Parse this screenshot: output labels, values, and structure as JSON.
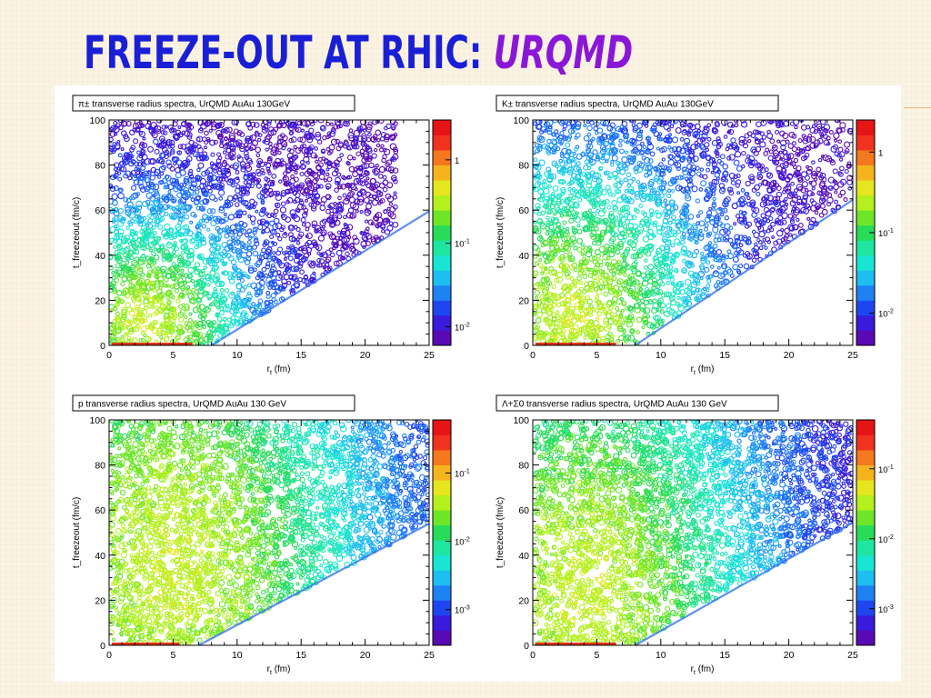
{
  "slide": {
    "title_part1": "FREEZE-OUT AT RHIC: ",
    "title_part2": "URQMD"
  },
  "chart_data": [
    {
      "type": "heatmap",
      "title": "π± transverse radius spectra, UrQMD AuAu 130GeV",
      "xlabel": "r_t (fm)",
      "ylabel": "t_freezeout (fm/c)",
      "xlim": [
        0,
        25
      ],
      "ylim": [
        0,
        100
      ],
      "x_ticks": [
        0,
        5,
        10,
        15,
        20,
        25
      ],
      "y_ticks": [
        0,
        20,
        40,
        60,
        80,
        100
      ],
      "colorbar_scale": "log",
      "colorbar_labels": [
        {
          "text": "1",
          "value": 1
        },
        {
          "text": "10-1",
          "value": 0.1
        },
        {
          "text": "10-2",
          "value": 0.01
        }
      ],
      "colorbar_range": [
        0.006,
        3
      ],
      "description": "contour density in the (r_t, t_freezeout) plane; bounded below by the line t ≈ 3.5·(r_t − 8)",
      "density_model": {
        "peak_rt": 3,
        "peak_t": 10,
        "rt_width": 4.5,
        "t_width": 28,
        "lower_bound_rt_offset": 8,
        "lower_bound_slope": 3.5,
        "rt_max": 22.5
      },
      "grid": false
    },
    {
      "type": "heatmap",
      "title": "K± transverse radius spectra, UrQMD AuAu 130GeV",
      "xlabel": "r_t (fm)",
      "ylabel": "t_freezeout (fm/c)",
      "xlim": [
        0,
        25
      ],
      "ylim": [
        0,
        100
      ],
      "x_ticks": [
        0,
        5,
        10,
        15,
        20,
        25
      ],
      "y_ticks": [
        0,
        20,
        40,
        60,
        80,
        100
      ],
      "colorbar_scale": "log",
      "colorbar_labels": [
        {
          "text": "1",
          "value": 1
        },
        {
          "text": "10-1",
          "value": 0.1
        },
        {
          "text": "10-2",
          "value": 0.01
        }
      ],
      "colorbar_range": [
        0.004,
        2.5
      ],
      "density_model": {
        "peak_rt": 3,
        "peak_t": 12,
        "rt_width": 6,
        "t_width": 40,
        "lower_bound_rt_offset": 8,
        "lower_bound_slope": 3.8,
        "rt_max": 25
      },
      "grid": false
    },
    {
      "type": "heatmap",
      "title": "p transverse radius spectra, UrQMD AuAu 130 GeV",
      "xlabel": "r_t (fm)",
      "ylabel": "t_freezeout (fm/c)",
      "xlim": [
        0,
        25
      ],
      "ylim": [
        0,
        100
      ],
      "x_ticks": [
        0,
        5,
        10,
        15,
        20,
        25
      ],
      "y_ticks": [
        0,
        20,
        40,
        60,
        80,
        100
      ],
      "colorbar_scale": "log",
      "colorbar_labels": [
        {
          "text": "10-1",
          "value": 0.1
        },
        {
          "text": "10-2",
          "value": 0.01
        },
        {
          "text": "10-3",
          "value": 0.001
        }
      ],
      "colorbar_range": [
        0.0003,
        0.6
      ],
      "density_model": {
        "peak_rt": 5,
        "peak_t": 35,
        "rt_width": 9,
        "t_width": 80,
        "lower_bound_rt_offset": 7,
        "lower_bound_slope": 3.0,
        "rt_max": 25
      },
      "grid": false
    },
    {
      "type": "heatmap",
      "title": "Λ+Σ0 transverse radius spectra, UrQMD AuAu 130 GeV",
      "xlabel": "r_t (fm)",
      "ylabel": "t_freezeout (fm/c)",
      "xlim": [
        0,
        25
      ],
      "ylim": [
        0,
        100
      ],
      "x_ticks": [
        0,
        5,
        10,
        15,
        20,
        25
      ],
      "y_ticks": [
        0,
        20,
        40,
        60,
        80,
        100
      ],
      "colorbar_scale": "log",
      "colorbar_labels": [
        {
          "text": "10-1",
          "value": 0.1
        },
        {
          "text": "10-2",
          "value": 0.01
        },
        {
          "text": "10-3",
          "value": 0.001
        }
      ],
      "colorbar_range": [
        0.0003,
        0.5
      ],
      "density_model": {
        "peak_rt": 4,
        "peak_t": 25,
        "rt_width": 8,
        "t_width": 70,
        "lower_bound_rt_offset": 8,
        "lower_bound_slope": 3.2,
        "rt_max": 25
      },
      "grid": false
    }
  ]
}
